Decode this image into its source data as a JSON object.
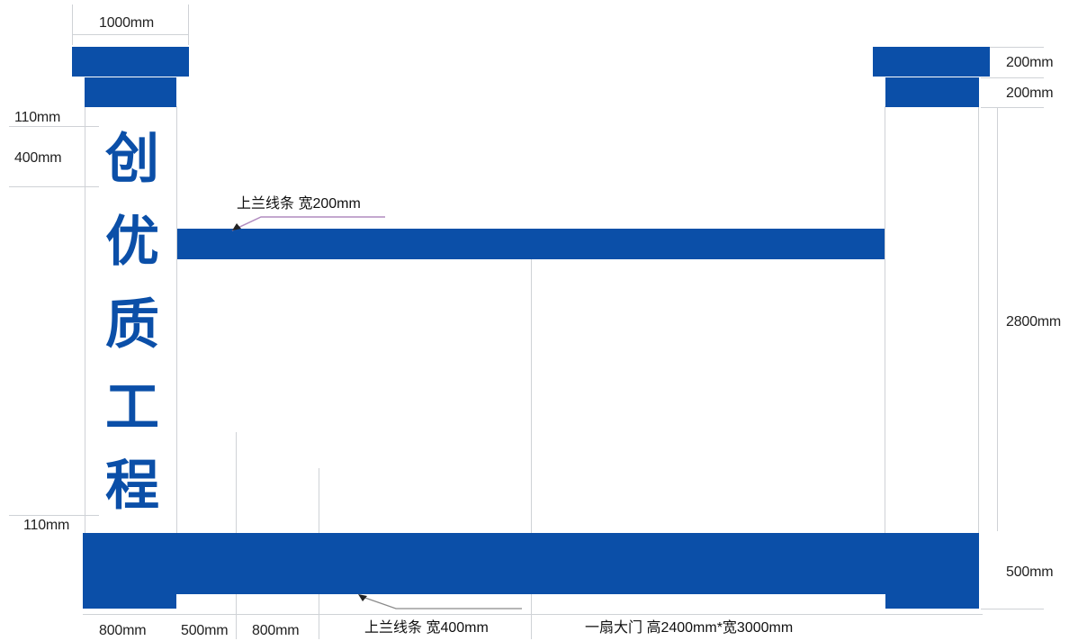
{
  "colors": {
    "brand_blue": "#0b4fa8",
    "guide_gray": "#cfd2d6"
  },
  "pillar_text": [
    "创",
    "优",
    "质",
    "工",
    "程"
  ],
  "dimensions": {
    "top_width": "1000mm",
    "left_110_top": "110mm",
    "left_400": "400mm",
    "left_110_bottom": "110mm",
    "right_200_a": "200mm",
    "right_200_b": "200mm",
    "right_2800": "2800mm",
    "right_500": "500mm",
    "bottom_800_a": "800mm",
    "bottom_500": "500mm",
    "bottom_800_b": "800mm"
  },
  "annotations": {
    "upper_rail": "上兰线条 宽200mm",
    "lower_rail": "上兰线条 宽400mm",
    "gate_note": "一扇大门 高2400mm*宽3000mm"
  }
}
